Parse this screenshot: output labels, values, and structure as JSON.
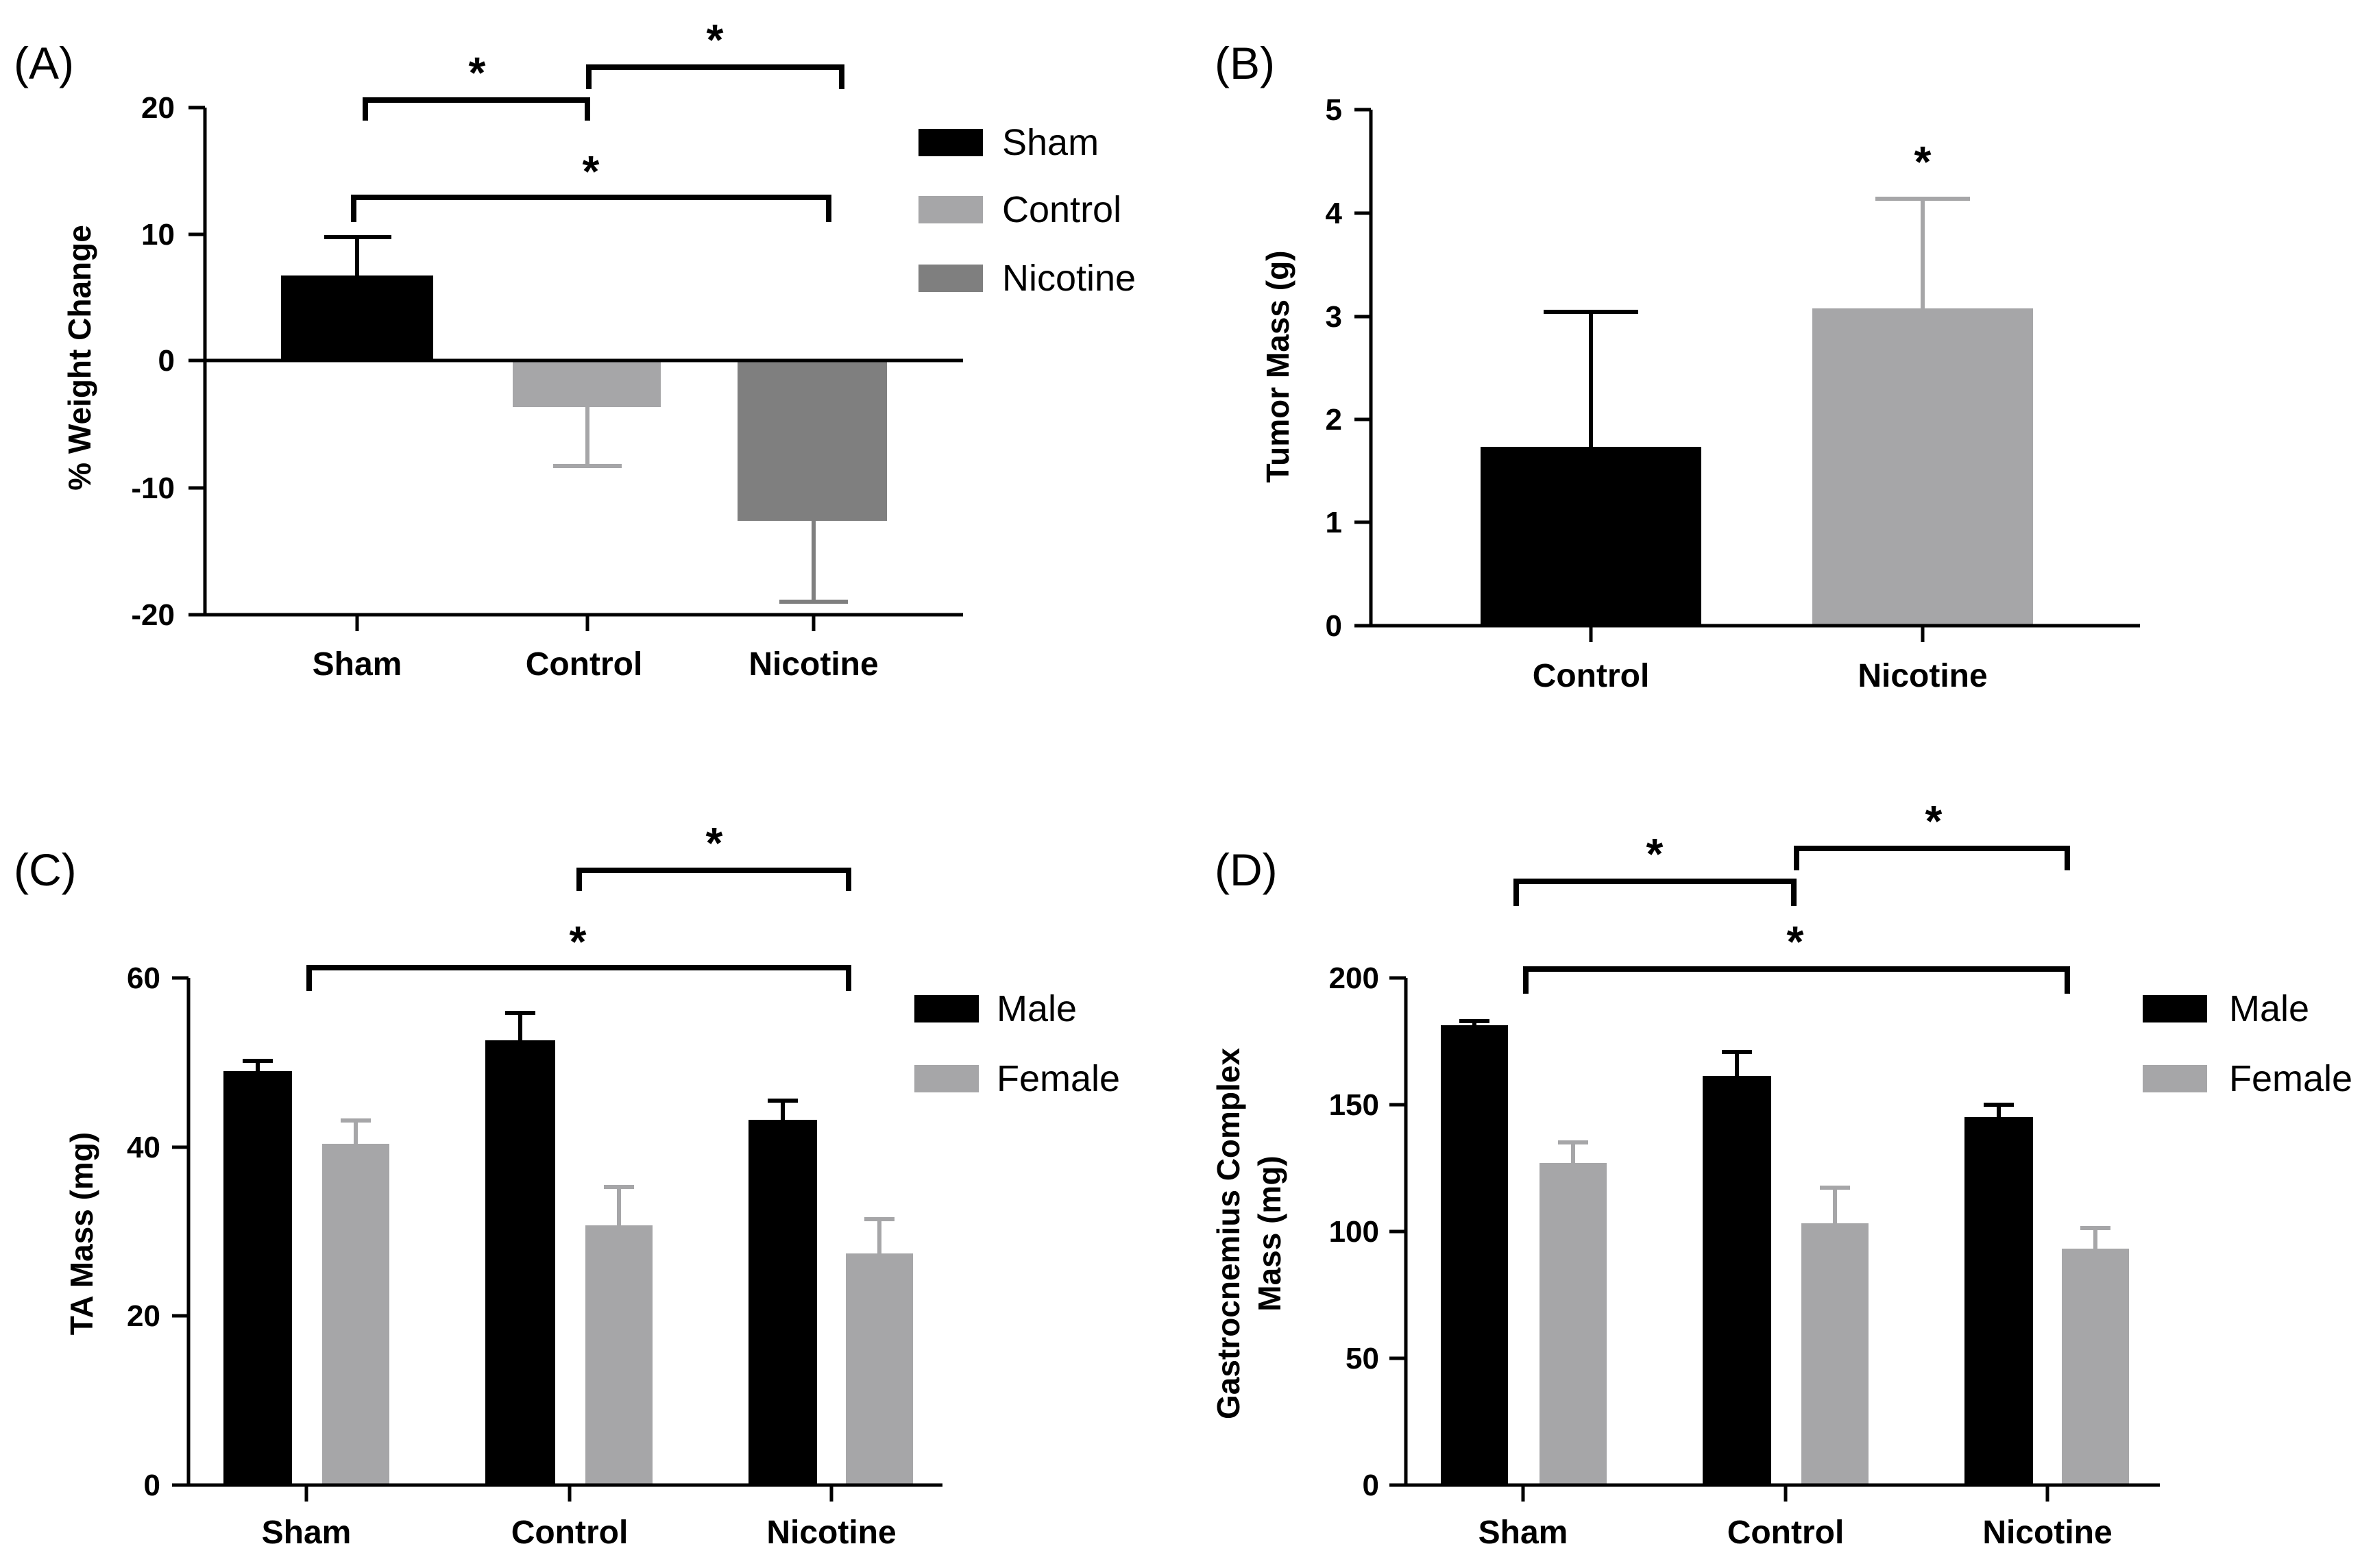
{
  "chart_data": [
    {
      "panel": "(A)",
      "type": "bar",
      "categories": [
        "Sham",
        "Control",
        "Nicotine"
      ],
      "values": [
        6.8,
        -3.7,
        -12.5
      ],
      "errors": [
        3.1,
        4.5,
        6.3
      ],
      "colors": [
        "#000000",
        "#a6a6a8",
        "#7f7f7f"
      ],
      "ylabel": "% Weight Change",
      "ylim": [
        -20,
        20
      ],
      "yticks": [
        "-20",
        "-10",
        "0",
        "10",
        "20"
      ],
      "legend": [
        "Sham",
        "Control",
        "Nicotine"
      ],
      "significance": [
        "*",
        "*",
        "*"
      ]
    },
    {
      "panel": "(B)",
      "type": "bar",
      "categories": [
        "Control",
        "Nicotine"
      ],
      "values": [
        1.75,
        3.07
      ],
      "errors": [
        1.3,
        1.07
      ],
      "colors": [
        "#000000",
        "#a6a6a8"
      ],
      "ylabel": "Tumor Mass (g)",
      "ylim": [
        0,
        5
      ],
      "yticks": [
        "0",
        "1",
        "2",
        "3",
        "4",
        "5"
      ],
      "significance": [
        "*"
      ]
    },
    {
      "panel": "(C)",
      "type": "bar",
      "categories": [
        "Sham",
        "Control",
        "Nicotine"
      ],
      "series": [
        {
          "name": "Male",
          "values": [
            49,
            52.5,
            43
          ],
          "errors": [
            1.2,
            3.2,
            2.3
          ],
          "color": "#000000"
        },
        {
          "name": "Female",
          "values": [
            40.3,
            30.6,
            27.2
          ],
          "errors": [
            2.8,
            4.6,
            4.0
          ],
          "color": "#a6a6a8"
        }
      ],
      "ylabel": "TA Mass (mg)",
      "ylim": [
        0,
        60
      ],
      "yticks": [
        "0",
        "20",
        "40",
        "60"
      ],
      "significance": [
        "*",
        "*"
      ]
    },
    {
      "panel": "(D)",
      "type": "bar",
      "categories": [
        "Sham",
        "Control",
        "Nicotine"
      ],
      "series": [
        {
          "name": "Male",
          "values": [
            181,
            161,
            145
          ],
          "errors": [
            1.5,
            9.5,
            4.8
          ],
          "color": "#000000"
        },
        {
          "name": "Female",
          "values": [
            127,
            103,
            93
          ],
          "errors": [
            8,
            14,
            8
          ],
          "color": "#a6a6a8"
        }
      ],
      "ylabel": "Gastrocnemius Complex Mass (mg)",
      "ylabel_lines": [
        "Gastrocnemius Complex",
        "Mass (mg)"
      ],
      "ylim": [
        0,
        200
      ],
      "yticks": [
        "0",
        "50",
        "100",
        "150",
        "200"
      ],
      "significance": [
        "*",
        "*",
        "*"
      ]
    }
  ]
}
